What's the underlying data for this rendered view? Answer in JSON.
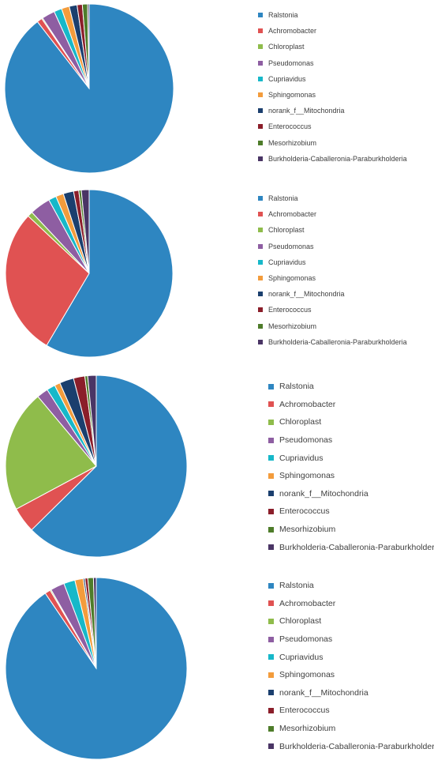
{
  "chart_data": [
    {
      "type": "pie",
      "categories": [
        "Ralstonia",
        "Achromobacter",
        "Chloroplast",
        "Pseudomonas",
        "Cupriavidus",
        "Sphingomonas",
        "norank_f__Mitochondria",
        "Enterococcus",
        "Mesorhizobium",
        "Burkholderia-Caballeronia-Paraburkholderia"
      ],
      "values": [
        89.5,
        1.0,
        0.2,
        2.5,
        1.5,
        1.5,
        1.5,
        1.0,
        1.0,
        0.3
      ],
      "colors": [
        "#2e86c1",
        "#e05252",
        "#8fbc4b",
        "#8e5ea2",
        "#17b8c9",
        "#f39c3c",
        "#1b3f6e",
        "#8b1e2a",
        "#4e7c2a",
        "#4a3565"
      ],
      "legend": "right"
    },
    {
      "type": "pie",
      "categories": [
        "Ralstonia",
        "Achromobacter",
        "Chloroplast",
        "Pseudomonas",
        "Cupriavidus",
        "Sphingomonas",
        "norank_f__Mitochondria",
        "Enterococcus",
        "Mesorhizobium",
        "Burkholderia-Caballeronia-Paraburkholderia"
      ],
      "values": [
        58.5,
        28.5,
        1.0,
        4.0,
        1.5,
        1.5,
        2.0,
        1.0,
        0.5,
        1.5
      ],
      "colors": [
        "#2e86c1",
        "#e05252",
        "#8fbc4b",
        "#8e5ea2",
        "#17b8c9",
        "#f39c3c",
        "#1b3f6e",
        "#8b1e2a",
        "#4e7c2a",
        "#4a3565"
      ],
      "legend": "right"
    },
    {
      "type": "pie",
      "categories": [
        "Ralstonia",
        "Achromobacter",
        "Chloroplast",
        "Pseudomonas",
        "Cupriavidus",
        "Sphingomonas",
        "norank_f__Mitochondria",
        "Enterococcus",
        "Mesorhizobium",
        "Burkholderia-Caballeronia-Paraburkholderia"
      ],
      "values": [
        62.0,
        4.5,
        21.5,
        2.0,
        1.5,
        1.0,
        2.5,
        2.0,
        0.5,
        1.5
      ],
      "colors": [
        "#2e86c1",
        "#e05252",
        "#8fbc4b",
        "#8e5ea2",
        "#17b8c9",
        "#f39c3c",
        "#1b3f6e",
        "#8b1e2a",
        "#4e7c2a",
        "#4a3565"
      ],
      "legend": "right"
    },
    {
      "type": "pie",
      "categories": [
        "Ralstonia",
        "Achromobacter",
        "Chloroplast",
        "Pseudomonas",
        "Cupriavidus",
        "Sphingomonas",
        "norank_f__Mitochondria",
        "Enterococcus",
        "Mesorhizobium",
        "Burkholderia-Caballeronia-Paraburkholderia"
      ],
      "values": [
        90.5,
        1.0,
        0.2,
        2.5,
        2.0,
        1.5,
        0.3,
        0.5,
        1.0,
        0.5
      ],
      "colors": [
        "#2e86c1",
        "#e05252",
        "#8fbc4b",
        "#8e5ea2",
        "#17b8c9",
        "#f39c3c",
        "#1b3f6e",
        "#8b1e2a",
        "#4e7c2a",
        "#4a3565"
      ],
      "legend": "right"
    }
  ]
}
